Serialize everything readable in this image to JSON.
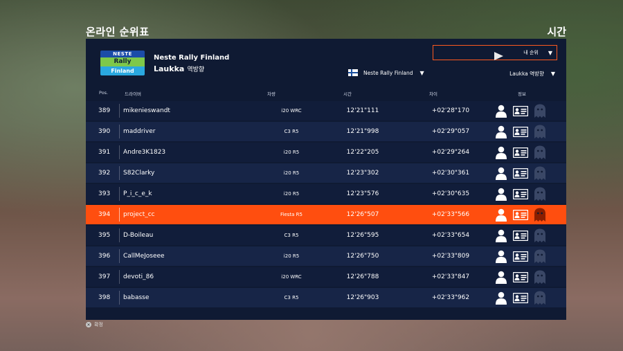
{
  "screen": {
    "title": "온라인 순위표",
    "right_title": "시간"
  },
  "event": {
    "logo": {
      "line1": "NESTE",
      "line2": "Rally",
      "line3": "Finland"
    },
    "name": "Neste Rally Finland",
    "stage": "Laukka",
    "direction": "역방향"
  },
  "filters": {
    "leaderboard_filter": "내 순위",
    "event_dropdown": "Neste Rally Finland",
    "stage_dropdown": "Laukka 역방향"
  },
  "columns": {
    "pos": "Pos.",
    "driver": "드라이버",
    "car": "차량",
    "time": "시간",
    "diff": "차이",
    "info": "정보"
  },
  "rows": [
    {
      "pos": "389",
      "driver": "mikenieswandt",
      "car": "i20 WRC",
      "time": "12'21\"111",
      "diff": "+02'28\"170"
    },
    {
      "pos": "390",
      "driver": "maddriver",
      "car": "C3 R5",
      "time": "12'21\"998",
      "diff": "+02'29\"057"
    },
    {
      "pos": "391",
      "driver": "Andre3K1823",
      "car": "i20 R5",
      "time": "12'22\"205",
      "diff": "+02'29\"264"
    },
    {
      "pos": "392",
      "driver": "S82Clarky",
      "car": "i20 R5",
      "time": "12'23\"302",
      "diff": "+02'30\"361"
    },
    {
      "pos": "393",
      "driver": "P_i_c_e_k",
      "car": "i20 R5",
      "time": "12'23\"576",
      "diff": "+02'30\"635"
    },
    {
      "pos": "394",
      "driver": "project_cc",
      "car": "Fiesta R5",
      "time": "12'26\"507",
      "diff": "+02'33\"566",
      "highlight": true
    },
    {
      "pos": "395",
      "driver": "D-Boileau",
      "car": "C3 R5",
      "time": "12'26\"595",
      "diff": "+02'33\"654"
    },
    {
      "pos": "396",
      "driver": "CallMeJoseee",
      "car": "i20 R5",
      "time": "12'26\"750",
      "diff": "+02'33\"809"
    },
    {
      "pos": "397",
      "driver": "devoti_86",
      "car": "i20 WRC",
      "time": "12'26\"788",
      "diff": "+02'33\"847"
    },
    {
      "pos": "398",
      "driver": "babasse",
      "car": "C3 R5",
      "time": "12'26\"903",
      "diff": "+02'33\"962"
    }
  ],
  "footer": {
    "button_glyph": "✕",
    "label": "확정"
  },
  "colors": {
    "panel": "#0f1a33",
    "highlight": "#ff4e0f",
    "accent_border": "#ff5a1f"
  },
  "icons": [
    "person-icon",
    "profile-card-icon",
    "ghost-icon",
    "caret-down-icon",
    "finland-flag-icon",
    "cross-button-icon"
  ]
}
